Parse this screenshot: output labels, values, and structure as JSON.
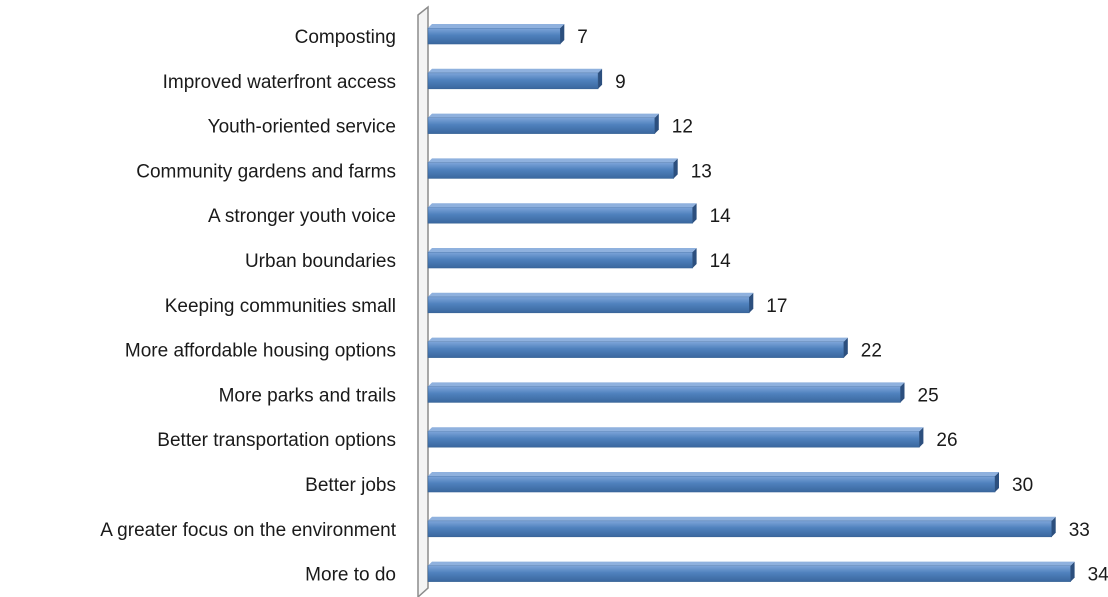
{
  "chart_data": {
    "type": "bar",
    "orientation": "horizontal",
    "title": "",
    "xlabel": "",
    "ylabel": "",
    "xlim": [
      0,
      34
    ],
    "grid": false,
    "legend": "none",
    "bar_color": "#4F81BD",
    "categories": [
      "Composting",
      "Improved waterfront access",
      "Youth-oriented service",
      "Community gardens and farms",
      "A stronger youth voice",
      "Urban boundaries",
      "Keeping communities small",
      "More affordable housing options",
      "More parks and trails",
      "Better transportation options",
      "Better jobs",
      "A greater focus on the environment",
      "More to do"
    ],
    "values": [
      7,
      9,
      12,
      13,
      14,
      14,
      17,
      22,
      25,
      26,
      30,
      33,
      34
    ],
    "value_labels": [
      "7",
      "9",
      "12",
      "13",
      "14",
      "14",
      "17",
      "22",
      "25",
      "26",
      "30",
      "33",
      "34"
    ]
  }
}
